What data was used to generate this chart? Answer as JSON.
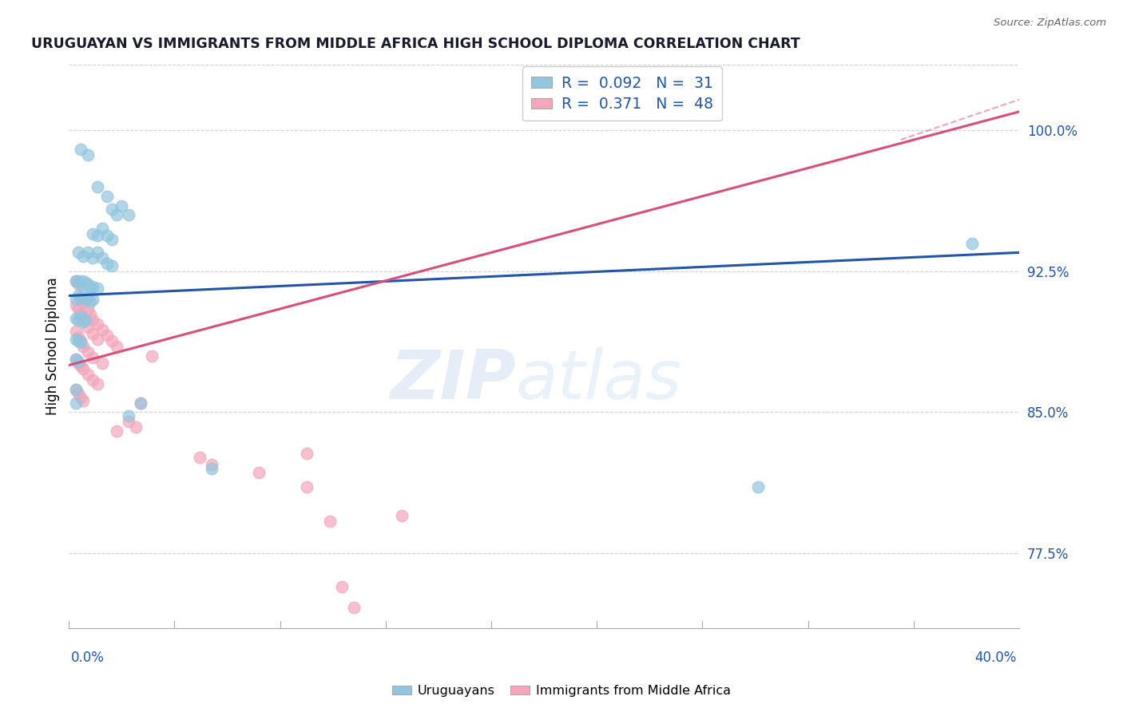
{
  "title": "URUGUAYAN VS IMMIGRANTS FROM MIDDLE AFRICA HIGH SCHOOL DIPLOMA CORRELATION CHART",
  "source": "Source: ZipAtlas.com",
  "ylabel": "High School Diploma",
  "ytick_labels": [
    "77.5%",
    "85.0%",
    "92.5%",
    "100.0%"
  ],
  "ytick_values": [
    0.775,
    0.85,
    0.925,
    1.0
  ],
  "xmin": 0.0,
  "xmax": 0.4,
  "ymin": 0.735,
  "ymax": 1.035,
  "blue_color": "#92c5de",
  "pink_color": "#f4a6bb",
  "blue_line_color": "#2155a8",
  "pink_line_color": "#d94f7a",
  "blue_scatter": [
    [
      0.005,
      0.99
    ],
    [
      0.008,
      0.987
    ],
    [
      0.012,
      0.97
    ],
    [
      0.016,
      0.965
    ],
    [
      0.018,
      0.958
    ],
    [
      0.02,
      0.955
    ],
    [
      0.022,
      0.96
    ],
    [
      0.025,
      0.955
    ],
    [
      0.01,
      0.945
    ],
    [
      0.012,
      0.944
    ],
    [
      0.014,
      0.948
    ],
    [
      0.016,
      0.944
    ],
    [
      0.018,
      0.942
    ],
    [
      0.004,
      0.935
    ],
    [
      0.006,
      0.933
    ],
    [
      0.008,
      0.935
    ],
    [
      0.01,
      0.932
    ],
    [
      0.012,
      0.935
    ],
    [
      0.014,
      0.932
    ],
    [
      0.016,
      0.929
    ],
    [
      0.018,
      0.928
    ],
    [
      0.003,
      0.92
    ],
    [
      0.004,
      0.92
    ],
    [
      0.005,
      0.918
    ],
    [
      0.006,
      0.92
    ],
    [
      0.007,
      0.919
    ],
    [
      0.008,
      0.918
    ],
    [
      0.009,
      0.916
    ],
    [
      0.01,
      0.917
    ],
    [
      0.012,
      0.916
    ],
    [
      0.003,
      0.91
    ],
    [
      0.004,
      0.912
    ],
    [
      0.005,
      0.911
    ],
    [
      0.006,
      0.912
    ],
    [
      0.007,
      0.91
    ],
    [
      0.008,
      0.911
    ],
    [
      0.009,
      0.909
    ],
    [
      0.01,
      0.91
    ],
    [
      0.003,
      0.9
    ],
    [
      0.004,
      0.899
    ],
    [
      0.005,
      0.901
    ],
    [
      0.006,
      0.898
    ],
    [
      0.007,
      0.899
    ],
    [
      0.003,
      0.889
    ],
    [
      0.004,
      0.888
    ],
    [
      0.005,
      0.887
    ],
    [
      0.003,
      0.878
    ],
    [
      0.004,
      0.877
    ],
    [
      0.003,
      0.862
    ],
    [
      0.003,
      0.855
    ],
    [
      0.03,
      0.855
    ],
    [
      0.025,
      0.848
    ],
    [
      0.06,
      0.82
    ],
    [
      0.29,
      0.81
    ],
    [
      0.38,
      0.94
    ]
  ],
  "pink_scatter": [
    [
      0.003,
      0.92
    ],
    [
      0.004,
      0.918
    ],
    [
      0.005,
      0.91
    ],
    [
      0.006,
      0.908
    ],
    [
      0.008,
      0.905
    ],
    [
      0.009,
      0.902
    ],
    [
      0.01,
      0.899
    ],
    [
      0.012,
      0.897
    ],
    [
      0.014,
      0.894
    ],
    [
      0.016,
      0.891
    ],
    [
      0.018,
      0.888
    ],
    [
      0.02,
      0.885
    ],
    [
      0.003,
      0.907
    ],
    [
      0.004,
      0.905
    ],
    [
      0.005,
      0.902
    ],
    [
      0.006,
      0.9
    ],
    [
      0.008,
      0.895
    ],
    [
      0.01,
      0.892
    ],
    [
      0.012,
      0.889
    ],
    [
      0.003,
      0.893
    ],
    [
      0.004,
      0.89
    ],
    [
      0.005,
      0.888
    ],
    [
      0.006,
      0.885
    ],
    [
      0.008,
      0.882
    ],
    [
      0.01,
      0.879
    ],
    [
      0.014,
      0.876
    ],
    [
      0.003,
      0.878
    ],
    [
      0.004,
      0.876
    ],
    [
      0.005,
      0.875
    ],
    [
      0.006,
      0.873
    ],
    [
      0.008,
      0.87
    ],
    [
      0.01,
      0.867
    ],
    [
      0.012,
      0.865
    ],
    [
      0.003,
      0.862
    ],
    [
      0.004,
      0.86
    ],
    [
      0.005,
      0.858
    ],
    [
      0.006,
      0.856
    ],
    [
      0.035,
      0.88
    ],
    [
      0.03,
      0.855
    ],
    [
      0.025,
      0.845
    ],
    [
      0.028,
      0.842
    ],
    [
      0.02,
      0.84
    ],
    [
      0.055,
      0.826
    ],
    [
      0.06,
      0.822
    ],
    [
      0.08,
      0.818
    ],
    [
      0.1,
      0.828
    ],
    [
      0.14,
      0.795
    ],
    [
      0.1,
      0.81
    ],
    [
      0.11,
      0.792
    ],
    [
      0.115,
      0.757
    ],
    [
      0.12,
      0.746
    ]
  ],
  "watermark_zip": "ZIP",
  "watermark_atlas": "atlas",
  "background_color": "#ffffff",
  "grid_color": "#cccccc"
}
